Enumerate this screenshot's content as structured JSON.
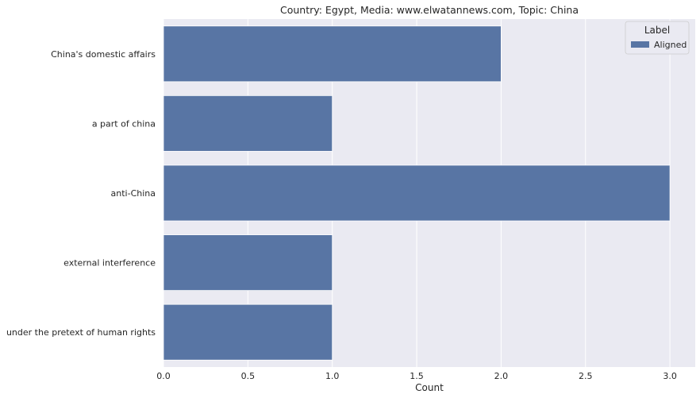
{
  "chart_data": {
    "type": "bar",
    "orientation": "horizontal",
    "title": "Country: Egypt, Media: www.elwatannews.com, Topic: China",
    "xlabel": "Count",
    "ylabel": "",
    "categories": [
      "China's domestic affairs",
      "a part of china",
      "anti-China",
      "external interference",
      "under the pretext of human rights"
    ],
    "series": [
      {
        "name": "Aligned",
        "values": [
          2,
          1,
          3,
          1,
          1
        ],
        "color": "#5875a4"
      }
    ],
    "xlim": [
      0,
      3.15
    ],
    "xticks": [
      0.0,
      0.5,
      1.0,
      1.5,
      2.0,
      2.5,
      3.0
    ],
    "xtick_labels": [
      "0.0",
      "0.5",
      "1.0",
      "1.5",
      "2.0",
      "2.5",
      "3.0"
    ],
    "grid": true,
    "legend": {
      "title": "Label",
      "placement": "top-right"
    },
    "colors": {
      "background": "#eaeaf2",
      "grid": "#ffffff",
      "bar": "#5875a4"
    }
  }
}
